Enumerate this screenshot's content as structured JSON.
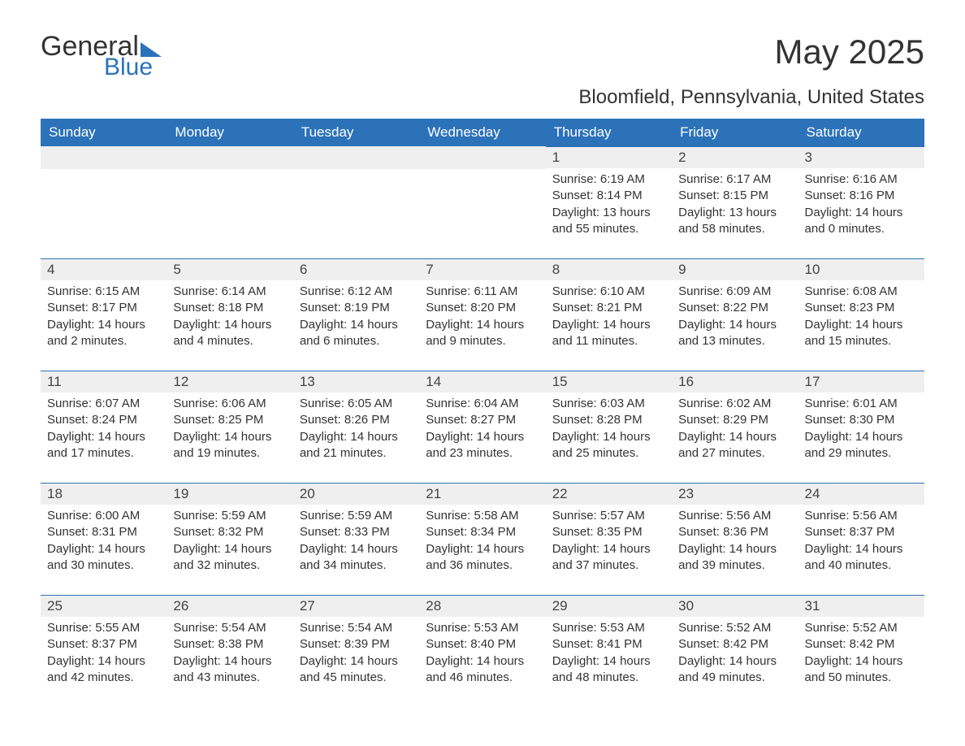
{
  "logo": {
    "word1": "General",
    "word2": "Blue"
  },
  "title": "May 2025",
  "subtitle": "Bloomfield, Pennsylvania, United States",
  "colors": {
    "brand_blue": "#2b72b9",
    "header_text": "#ffffff",
    "daynum_bg": "#efefef",
    "text": "#333333",
    "background": "#ffffff"
  },
  "typography": {
    "title_fontsize": 42,
    "subtitle_fontsize": 24,
    "dayhead_fontsize": 17,
    "body_fontsize": 15,
    "font_family": "Arial"
  },
  "layout": {
    "columns": 7,
    "rows": 5,
    "start_weekday": "Sunday",
    "first_day_column_index": 4
  },
  "day_headers": [
    "Sunday",
    "Monday",
    "Tuesday",
    "Wednesday",
    "Thursday",
    "Friday",
    "Saturday"
  ],
  "days": [
    {
      "n": 1,
      "sunrise": "6:19 AM",
      "sunset": "8:14 PM",
      "daylight": "13 hours and 55 minutes."
    },
    {
      "n": 2,
      "sunrise": "6:17 AM",
      "sunset": "8:15 PM",
      "daylight": "13 hours and 58 minutes."
    },
    {
      "n": 3,
      "sunrise": "6:16 AM",
      "sunset": "8:16 PM",
      "daylight": "14 hours and 0 minutes."
    },
    {
      "n": 4,
      "sunrise": "6:15 AM",
      "sunset": "8:17 PM",
      "daylight": "14 hours and 2 minutes."
    },
    {
      "n": 5,
      "sunrise": "6:14 AM",
      "sunset": "8:18 PM",
      "daylight": "14 hours and 4 minutes."
    },
    {
      "n": 6,
      "sunrise": "6:12 AM",
      "sunset": "8:19 PM",
      "daylight": "14 hours and 6 minutes."
    },
    {
      "n": 7,
      "sunrise": "6:11 AM",
      "sunset": "8:20 PM",
      "daylight": "14 hours and 9 minutes."
    },
    {
      "n": 8,
      "sunrise": "6:10 AM",
      "sunset": "8:21 PM",
      "daylight": "14 hours and 11 minutes."
    },
    {
      "n": 9,
      "sunrise": "6:09 AM",
      "sunset": "8:22 PM",
      "daylight": "14 hours and 13 minutes."
    },
    {
      "n": 10,
      "sunrise": "6:08 AM",
      "sunset": "8:23 PM",
      "daylight": "14 hours and 15 minutes."
    },
    {
      "n": 11,
      "sunrise": "6:07 AM",
      "sunset": "8:24 PM",
      "daylight": "14 hours and 17 minutes."
    },
    {
      "n": 12,
      "sunrise": "6:06 AM",
      "sunset": "8:25 PM",
      "daylight": "14 hours and 19 minutes."
    },
    {
      "n": 13,
      "sunrise": "6:05 AM",
      "sunset": "8:26 PM",
      "daylight": "14 hours and 21 minutes."
    },
    {
      "n": 14,
      "sunrise": "6:04 AM",
      "sunset": "8:27 PM",
      "daylight": "14 hours and 23 minutes."
    },
    {
      "n": 15,
      "sunrise": "6:03 AM",
      "sunset": "8:28 PM",
      "daylight": "14 hours and 25 minutes."
    },
    {
      "n": 16,
      "sunrise": "6:02 AM",
      "sunset": "8:29 PM",
      "daylight": "14 hours and 27 minutes."
    },
    {
      "n": 17,
      "sunrise": "6:01 AM",
      "sunset": "8:30 PM",
      "daylight": "14 hours and 29 minutes."
    },
    {
      "n": 18,
      "sunrise": "6:00 AM",
      "sunset": "8:31 PM",
      "daylight": "14 hours and 30 minutes."
    },
    {
      "n": 19,
      "sunrise": "5:59 AM",
      "sunset": "8:32 PM",
      "daylight": "14 hours and 32 minutes."
    },
    {
      "n": 20,
      "sunrise": "5:59 AM",
      "sunset": "8:33 PM",
      "daylight": "14 hours and 34 minutes."
    },
    {
      "n": 21,
      "sunrise": "5:58 AM",
      "sunset": "8:34 PM",
      "daylight": "14 hours and 36 minutes."
    },
    {
      "n": 22,
      "sunrise": "5:57 AM",
      "sunset": "8:35 PM",
      "daylight": "14 hours and 37 minutes."
    },
    {
      "n": 23,
      "sunrise": "5:56 AM",
      "sunset": "8:36 PM",
      "daylight": "14 hours and 39 minutes."
    },
    {
      "n": 24,
      "sunrise": "5:56 AM",
      "sunset": "8:37 PM",
      "daylight": "14 hours and 40 minutes."
    },
    {
      "n": 25,
      "sunrise": "5:55 AM",
      "sunset": "8:37 PM",
      "daylight": "14 hours and 42 minutes."
    },
    {
      "n": 26,
      "sunrise": "5:54 AM",
      "sunset": "8:38 PM",
      "daylight": "14 hours and 43 minutes."
    },
    {
      "n": 27,
      "sunrise": "5:54 AM",
      "sunset": "8:39 PM",
      "daylight": "14 hours and 45 minutes."
    },
    {
      "n": 28,
      "sunrise": "5:53 AM",
      "sunset": "8:40 PM",
      "daylight": "14 hours and 46 minutes."
    },
    {
      "n": 29,
      "sunrise": "5:53 AM",
      "sunset": "8:41 PM",
      "daylight": "14 hours and 48 minutes."
    },
    {
      "n": 30,
      "sunrise": "5:52 AM",
      "sunset": "8:42 PM",
      "daylight": "14 hours and 49 minutes."
    },
    {
      "n": 31,
      "sunrise": "5:52 AM",
      "sunset": "8:42 PM",
      "daylight": "14 hours and 50 minutes."
    }
  ],
  "labels": {
    "sunrise_prefix": "Sunrise: ",
    "sunset_prefix": "Sunset: ",
    "daylight_prefix": "Daylight: "
  }
}
